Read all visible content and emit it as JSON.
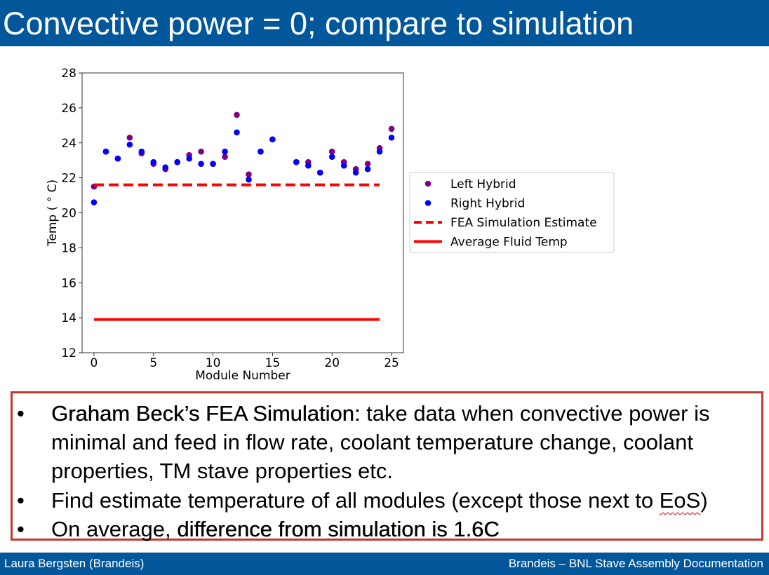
{
  "slide": {
    "title": "Convective power = 0; compare to simulation"
  },
  "bullets": [
    {
      "bullet": "•",
      "bold_lead": "Graham Beck’s FEA Simulation:",
      "text": " take data when convective power is minimal and feed in flow rate, coolant temperature change, coolant properties, TM stave properties etc."
    },
    {
      "bullet": "•",
      "text_before": "Find estimate temperature of all modules (except those next to ",
      "squiggle": "EoS",
      "text_after": ")"
    },
    {
      "bullet": "•",
      "text": "On average, ",
      "bold_tail": "difference from simulation is 1.6C"
    }
  ],
  "footer": {
    "left": "Laura Bergsten (Brandeis)",
    "right": "Brandeis – BNL Stave Assembly Documentation"
  },
  "colors": {
    "header_bg": "#02579a",
    "left_hybrid": "#800080",
    "right_hybrid": "#0000ff",
    "sim_line": "#ff0000",
    "box_border": "#c0392b"
  },
  "chart_data": {
    "type": "scatter",
    "xlabel": "Module Number",
    "ylabel": "Temp ( ° C)",
    "xlim": [
      -1,
      26
    ],
    "ylim": [
      12,
      28
    ],
    "xticks": [
      0,
      5,
      10,
      15,
      20,
      25
    ],
    "yticks": [
      12,
      14,
      16,
      18,
      20,
      22,
      24,
      26,
      28
    ],
    "grid": false,
    "legend_position": "right, outside plot",
    "series": [
      {
        "name": "Left Hybrid",
        "kind": "scatter",
        "color": "#800080",
        "x": [
          0,
          1,
          2,
          3,
          4,
          5,
          6,
          7,
          8,
          9,
          10,
          11,
          12,
          13,
          14,
          15,
          17,
          18,
          19,
          20,
          21,
          22,
          23,
          24,
          25
        ],
        "y": [
          21.5,
          23.5,
          23.1,
          24.3,
          23.4,
          22.8,
          22.5,
          22.9,
          23.3,
          23.5,
          22.8,
          23.2,
          25.6,
          22.2,
          23.5,
          24.2,
          22.9,
          22.9,
          22.3,
          23.5,
          22.9,
          22.5,
          22.8,
          23.7,
          24.8
        ]
      },
      {
        "name": "Right Hybrid",
        "kind": "scatter",
        "color": "#0000ff",
        "x": [
          0,
          1,
          2,
          3,
          4,
          5,
          6,
          7,
          8,
          9,
          10,
          11,
          12,
          13,
          14,
          15,
          17,
          18,
          19,
          20,
          21,
          22,
          23,
          24,
          25
        ],
        "y": [
          20.6,
          23.5,
          23.1,
          23.9,
          23.5,
          22.9,
          22.6,
          22.9,
          23.1,
          22.8,
          22.8,
          23.5,
          24.6,
          21.9,
          23.5,
          24.2,
          22.9,
          22.7,
          22.3,
          23.2,
          22.7,
          22.3,
          22.5,
          23.5,
          24.3
        ]
      },
      {
        "name": "FEA Simulation Estimate",
        "kind": "dashed-line",
        "color": "#ff0000",
        "x": [
          0,
          24
        ],
        "y": [
          21.6,
          21.6
        ]
      },
      {
        "name": "Average Fluid Temp",
        "kind": "line",
        "color": "#ff0000",
        "x": [
          0,
          24
        ],
        "y": [
          13.9,
          13.9
        ]
      }
    ]
  }
}
